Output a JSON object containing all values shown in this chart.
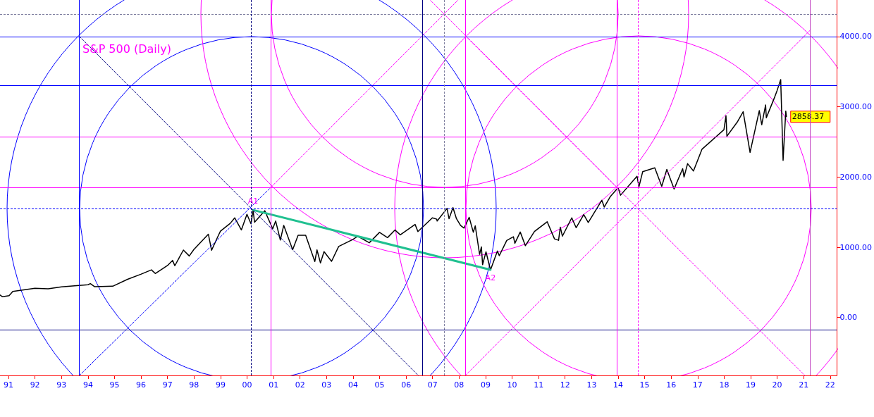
{
  "chart_data": {
    "type": "line",
    "title": "S&P 500 (Daily)",
    "marker": "none",
    "line_style": "solid",
    "xlim": [
      "1990-09-06",
      "2022-04-05"
    ],
    "ylim": [
      -825,
      4520
    ],
    "xticks": [
      {
        "value": "1991-01-01",
        "label": "91"
      },
      {
        "value": "1992-01-01",
        "label": "92"
      },
      {
        "value": "1993-01-01",
        "label": "93"
      },
      {
        "value": "1994-01-01",
        "label": "94"
      },
      {
        "value": "1995-01-01",
        "label": "95"
      },
      {
        "value": "1996-01-01",
        "label": "96"
      },
      {
        "value": "1997-01-01",
        "label": "97"
      },
      {
        "value": "1998-01-01",
        "label": "98"
      },
      {
        "value": "1999-01-01",
        "label": "99"
      },
      {
        "value": "2000-01-01",
        "label": "00"
      },
      {
        "value": "2001-01-01",
        "label": "01"
      },
      {
        "value": "2002-01-01",
        "label": "02"
      },
      {
        "value": "2003-01-01",
        "label": "03"
      },
      {
        "value": "2004-01-01",
        "label": "04"
      },
      {
        "value": "2005-01-01",
        "label": "05"
      },
      {
        "value": "2006-01-01",
        "label": "06"
      },
      {
        "value": "2007-01-01",
        "label": "07"
      },
      {
        "value": "2008-01-01",
        "label": "08"
      },
      {
        "value": "2009-01-01",
        "label": "09"
      },
      {
        "value": "2010-01-01",
        "label": "10"
      },
      {
        "value": "2011-01-01",
        "label": "11"
      },
      {
        "value": "2012-01-01",
        "label": "12"
      },
      {
        "value": "2013-01-01",
        "label": "13"
      },
      {
        "value": "2014-01-01",
        "label": "14"
      },
      {
        "value": "2015-01-01",
        "label": "15"
      },
      {
        "value": "2016-01-01",
        "label": "16"
      },
      {
        "value": "2017-01-01",
        "label": "17"
      },
      {
        "value": "2018-01-01",
        "label": "18"
      },
      {
        "value": "2019-01-01",
        "label": "19"
      },
      {
        "value": "2020-01-01",
        "label": "20"
      },
      {
        "value": "2021-01-01",
        "label": "21"
      },
      {
        "value": "2022-01-01",
        "label": "22"
      }
    ],
    "yticks": [
      {
        "value": 0,
        "label": "0.00"
      },
      {
        "value": 1000,
        "label": "1000.00"
      },
      {
        "value": 2000,
        "label": "2000.00"
      },
      {
        "value": 3000,
        "label": "3000.00"
      },
      {
        "value": 4000,
        "label": "4000.00"
      }
    ],
    "series": [
      {
        "color": "#000000",
        "x": [
          "1990-09-07",
          "1990-10-11",
          "1991-01-09",
          "1991-03-01",
          "1991-12-31",
          "1992-06-30",
          "1992-12-31",
          "1993-06-30",
          "1993-12-31",
          "1994-02-02",
          "1994-04-04",
          "1994-12-08",
          "1995-06-30",
          "1995-12-29",
          "1996-05-24",
          "1996-07-16",
          "1996-12-31",
          "1997-03-11",
          "1997-04-11",
          "1997-08-07",
          "1997-10-27",
          "1997-12-31",
          "1998-07-17",
          "1998-08-31",
          "1998-11-30",
          "1998-12-31",
          "1999-05-14",
          "1999-07-16",
          "1999-10-15",
          "1999-12-31",
          "2000-02-25",
          "2000-03-24",
          "2000-04-14",
          "2000-09-01",
          "2000-12-20",
          "2001-01-30",
          "2001-04-04",
          "2001-05-21",
          "2001-09-21",
          "2001-12-05",
          "2002-03-19",
          "2002-07-23",
          "2002-08-22",
          "2002-10-09",
          "2002-11-27",
          "2003-03-11",
          "2003-06-17",
          "2003-12-31",
          "2004-03-05",
          "2004-08-12",
          "2004-12-31",
          "2005-04-20",
          "2005-08-01",
          "2005-10-13",
          "2006-05-05",
          "2006-06-13",
          "2006-12-29",
          "2007-02-27",
          "2007-03-05",
          "2007-07-19",
          "2007-08-16",
          "2007-10-09",
          "2007-11-26",
          "2008-01-22",
          "2008-03-10",
          "2008-05-19",
          "2008-07-15",
          "2008-08-11",
          "2008-10-10",
          "2008-11-04",
          "2008-11-20",
          "2009-01-06",
          "2009-03-09",
          "2009-06-12",
          "2009-07-08",
          "2009-10-19",
          "2010-01-19",
          "2010-02-08",
          "2010-04-23",
          "2010-07-02",
          "2010-11-05",
          "2011-04-29",
          "2011-08-08",
          "2011-10-03",
          "2011-10-27",
          "2011-11-25",
          "2012-04-02",
          "2012-06-01",
          "2012-09-14",
          "2012-11-15",
          "2013-05-21",
          "2013-06-24",
          "2013-09-18",
          "2013-12-31",
          "2014-02-03",
          "2014-09-18",
          "2014-10-15",
          "2014-12-05",
          "2015-05-21",
          "2015-08-25",
          "2015-11-03",
          "2016-02-11",
          "2016-06-08",
          "2016-06-27",
          "2016-08-15",
          "2016-11-04",
          "2017-03-01",
          "2017-12-29",
          "2018-01-26",
          "2018-02-08",
          "2018-06-29",
          "2018-09-20",
          "2018-12-24",
          "2019-04-30",
          "2019-06-03",
          "2019-07-26",
          "2019-08-05",
          "2019-11-29",
          "2019-12-31",
          "2020-02-19",
          "2020-03-23",
          "2020-04-29",
          "2020-05-08"
        ],
        "values": [
          320,
          295,
          311,
          370,
          417,
          408,
          436,
          450,
          466,
          482,
          438,
          445,
          544,
          615,
          678,
          626,
          740,
          813,
          737,
          960,
          876,
          970,
          1186,
          957,
          1163,
          1229,
          1340,
          1418,
          1247,
          1469,
          1333,
          1527,
          1356,
          1520,
          1264,
          1373,
          1103,
          1312,
          966,
          1170,
          1170,
          797,
          962,
          777,
          938,
          800,
          1011,
          1112,
          1157,
          1064,
          1212,
          1137,
          1245,
          1177,
          1325,
          1223,
          1418,
          1400,
          1374,
          1553,
          1406,
          1565,
          1407,
          1310,
          1273,
          1426,
          1214,
          1305,
          899,
          1005,
          752,
          935,
          677,
          946,
          880,
          1097,
          1150,
          1056,
          1217,
          1022,
          1225,
          1363,
          1119,
          1099,
          1285,
          1158,
          1419,
          1278,
          1466,
          1353,
          1669,
          1573,
          1725,
          1848,
          1741,
          2011,
          1862,
          2075,
          2131,
          1867,
          2109,
          1829,
          2119,
          2000,
          2190,
          2085,
          2395,
          2673,
          2872,
          2581,
          2780,
          2930,
          2351,
          2945,
          2744,
          3025,
          2844,
          3140,
          3230,
          3386,
          2237,
          2939,
          2858.37
        ],
        "value_labels": [
          null,
          null,
          null,
          null,
          null,
          null,
          null,
          null,
          null,
          null,
          null,
          null,
          null,
          null,
          null,
          null,
          null,
          null,
          null,
          null,
          null,
          null,
          null,
          null,
          null,
          null,
          null,
          null,
          null,
          null,
          null,
          null,
          null,
          null,
          null,
          null,
          null,
          null,
          null,
          null,
          null,
          null,
          null,
          null,
          null,
          null,
          null,
          null,
          null,
          null,
          null,
          null,
          null,
          null,
          null,
          null,
          null,
          null,
          null,
          null,
          null,
          null,
          null,
          null,
          null,
          null,
          null,
          null,
          null,
          null,
          null,
          null,
          null,
          null,
          null,
          null,
          null,
          null,
          null,
          null,
          null,
          null,
          null,
          null,
          null,
          null,
          null,
          null,
          null,
          null,
          null,
          null,
          null,
          null,
          null,
          null,
          null,
          null,
          null,
          null,
          null,
          null,
          null,
          null,
          null,
          null,
          null,
          null,
          null,
          null,
          null,
          null,
          null,
          null,
          null,
          null,
          null,
          null,
          null,
          null,
          null,
          null,
          "2858.37"
        ]
      },
      {
        "color": "#20c090",
        "x": [
          "2000-03-24",
          "2009-03-09"
        ],
        "values": [
          1530,
          680
        ]
      },
      {
        "color": "#000080",
        "line_style": "dashed",
        "x": [
          "1993-09-05",
          "2006-06-18"
        ],
        "values": [
          4000,
          -825
        ]
      },
      {
        "color": "#0000ff",
        "line_style": "dashed",
        "x": [
          "1993-09-05",
          "2000-11-27"
        ],
        "values": [
          -825,
          1855
        ]
      },
      {
        "color": "#ff00ff",
        "line_style": "dashed",
        "x": [
          "2000-11-27",
          "2007-12-20"
        ],
        "values": [
          1855,
          4520
        ]
      },
      {
        "color": "#ff00ff",
        "line_style": "dashed",
        "x": [
          "2013-12-14",
          "2006-11-28"
        ],
        "values": [
          1855,
          4520
        ]
      },
      {
        "color": "#ff00ff",
        "line_style": "dashed",
        "x": [
          "2008-03-28",
          "2021-01-16"
        ],
        "values": [
          4010,
          -825
        ]
      },
      {
        "color": "#ff00ff",
        "line_style": "dashed",
        "x": [
          "2008-03-28",
          "2021-04-01"
        ],
        "values": [
          -825,
          4090
        ]
      }
    ],
    "ref_lines": [
      {
        "axis": "y",
        "value": 4000,
        "color": "#0000ff",
        "line_style": "solid"
      },
      {
        "axis": "y",
        "value": 4320,
        "color": "#8080a0",
        "line_style": "dashed"
      },
      {
        "axis": "y",
        "value": 3300,
        "color": "#0000ff",
        "line_style": "solid"
      },
      {
        "axis": "y",
        "value": 2575,
        "color": "#ff00ff",
        "line_style": "solid"
      },
      {
        "axis": "y",
        "value": 1855,
        "color": "#ff00ff",
        "line_style": "solid"
      },
      {
        "axis": "y",
        "value": 1550,
        "color": "#0000ff",
        "line_style": "dashed"
      },
      {
        "axis": "y",
        "value": -175,
        "color": "#000080",
        "line_style": "solid"
      },
      {
        "axis": "x",
        "value": "1993-09-05",
        "color": "#0000ff",
        "line_style": "solid"
      },
      {
        "axis": "x",
        "value": "2000-03-01",
        "color": "#000080",
        "line_style": "dashed"
      },
      {
        "axis": "x",
        "value": "2000-11-27",
        "color": "#ff00ff",
        "line_style": "solid"
      },
      {
        "axis": "x",
        "value": "2006-08-15",
        "color": "#000080",
        "line_style": "solid"
      },
      {
        "axis": "x",
        "value": "2007-06-10",
        "color": "#8080a0",
        "line_style": "dashed"
      },
      {
        "axis": "x",
        "value": "2008-03-28",
        "color": "#ff00ff",
        "line_style": "solid"
      },
      {
        "axis": "x",
        "value": "2013-12-14",
        "color": "#ff00ff",
        "line_style": "solid"
      },
      {
        "axis": "x",
        "value": "2014-10-01",
        "color": "#ff00ff",
        "line_style": "dashed"
      },
      {
        "axis": "x",
        "value": "2021-04-01",
        "color": "#c040c0",
        "line_style": "solid"
      }
    ],
    "annotations": [
      {
        "text": "A1",
        "x": "2000-03-24",
        "y": 1530
      },
      {
        "text": "A2",
        "x": "2009-03-09",
        "y": 680
      }
    ]
  }
}
